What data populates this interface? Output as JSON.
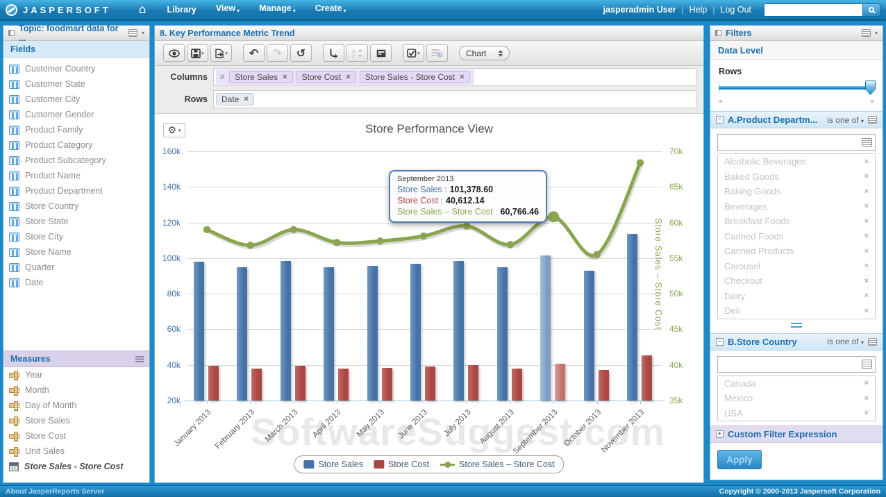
{
  "topbar": {
    "brand": "JASPERSOFT",
    "menu": [
      {
        "label": "Library",
        "caret": false
      },
      {
        "label": "View",
        "caret": true
      },
      {
        "label": "Manage",
        "caret": true
      },
      {
        "label": "Create",
        "caret": true
      }
    ],
    "user": "jasperadmin User",
    "help": "Help",
    "logout": "Log Out",
    "search_value": "",
    "icons": [
      "jaspersoft-logo",
      "home-icon",
      "search-icon"
    ]
  },
  "left_panel": {
    "title": "Topic: foodmart data for ...",
    "fields_header": "Fields",
    "fields": [
      "Customer Country",
      "Customer State",
      "Customer City",
      "Customer Gender",
      "Product Family",
      "Product Category",
      "Product Subcategory",
      "Product Name",
      "Product Department",
      "Store Country",
      "Store State",
      "Store City",
      "Store Name",
      "Quarter",
      "Date"
    ],
    "measures_header": "Measures",
    "measures": [
      "Year",
      "Month",
      "Day of Month",
      "Store Sales",
      "Store Cost",
      "Unit Sales"
    ],
    "calculated_measure": "Store Sales - Store Cost"
  },
  "main_panel": {
    "title": "8. Key Performance Metric Trend",
    "toolbar_icons": [
      "eye-icon",
      "save-icon",
      "export-icon",
      "undo-icon",
      "redo-icon",
      "reset-icon",
      "pivot-icon",
      "sort-icon",
      "layout-icon",
      "select-fields-icon",
      "help-columns-icon",
      "gear-icon"
    ],
    "view_selector": "Chart",
    "columns_label": "Columns",
    "columns_prefix": "#",
    "columns": [
      "Store Sales",
      "Store Cost",
      "Store Sales - Store Cost"
    ],
    "rows_label": "Rows",
    "rows": [
      "Date"
    ]
  },
  "chart_data": {
    "type": "bar",
    "subtype": "dual-axis bar + smooth line",
    "title": "Store Performance View",
    "categories": [
      "January 2013",
      "February 2013",
      "March 2013",
      "April 2013",
      "May 2013",
      "June 2013",
      "July 2013",
      "August 2013",
      "September 2013",
      "October 2013",
      "November 2013"
    ],
    "series": [
      {
        "name": "Store Sales",
        "type": "bar",
        "axis": "left",
        "color": "#4572A7",
        "values_k": [
          98.0,
          95.0,
          98.5,
          95.0,
          95.5,
          97.0,
          98.5,
          95.0,
          101.4,
          93.0,
          113.5
        ]
      },
      {
        "name": "Store Cost",
        "type": "bar",
        "axis": "left",
        "color": "#AA4643",
        "values_k": [
          39.5,
          38.0,
          39.5,
          38.0,
          38.5,
          39.0,
          40.0,
          38.0,
          40.6,
          37.0,
          45.5
        ]
      },
      {
        "name": "Store Sales – Store Cost",
        "type": "line",
        "axis": "right",
        "color": "#89A54E",
        "values_k": [
          59.0,
          56.8,
          59.0,
          57.2,
          57.4,
          58.1,
          59.5,
          56.9,
          60.8,
          55.5,
          68.4
        ]
      }
    ],
    "left_axis": {
      "ticks": [
        "160k",
        "140k",
        "120k",
        "100k",
        "80k",
        "60k",
        "40k",
        "20k"
      ],
      "min": 20,
      "max": 160,
      "color": "#4572A7"
    },
    "right_axis": {
      "title": "Store Sales – Store Cost",
      "ticks": [
        "70k",
        "65k",
        "60k",
        "55k",
        "50k",
        "45k",
        "40k",
        "35k"
      ],
      "min": 35,
      "max": 70,
      "color": "#89A54E"
    },
    "highlight_index": 8,
    "grid": true,
    "legend_position": "bottom"
  },
  "tooltip": {
    "title": "September 2013",
    "rows": [
      {
        "label": "Store Sales",
        "value": "101,378.60",
        "color": "#4572A7"
      },
      {
        "label": "Store Cost",
        "value": "40,612.14",
        "color": "#AA4643"
      },
      {
        "label": "Store Sales – Store Cost",
        "value": "60,766.46",
        "color": "#89A54E"
      }
    ]
  },
  "watermark": "SoftwareSuggest.com",
  "right_panel": {
    "title": "Filters",
    "data_level_header": "Data Level",
    "rows_slider_label": "Rows",
    "filters": [
      {
        "name": "A.Product Departm...",
        "op": "is one of",
        "resize_handle": true,
        "items": [
          "Alcoholic Beverages",
          "Baked Goods",
          "Baking Goods",
          "Beverages",
          "Breakfast Foods",
          "Canned Foods",
          "Canned Products",
          "Carousel",
          "Checkout",
          "Dairy",
          "Deli"
        ]
      },
      {
        "name": "B.Store Country",
        "op": "is one of",
        "resize_handle": false,
        "items": [
          "Canada",
          "Mexico",
          "USA"
        ]
      }
    ],
    "custom_filter_header": "Custom Filter Expression",
    "apply_label": "Apply"
  },
  "footer": {
    "left": "About JasperReports Server",
    "right": "Copyright © 2000-2013 Jaspersoft Corporation"
  }
}
